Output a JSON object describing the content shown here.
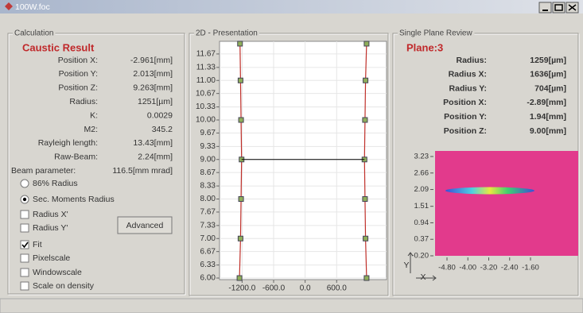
{
  "window": {
    "title": "100W.foc"
  },
  "calculation": {
    "group_title": "Calculation",
    "heading": "Caustic Result",
    "rows": [
      {
        "label": "Position X:",
        "value": "-2.961[mm]"
      },
      {
        "label": "Position Y:",
        "value": "2.013[mm]"
      },
      {
        "label": "Position Z:",
        "value": "9.263[mm]"
      },
      {
        "label": "Radius:",
        "value": "1251[µm]"
      },
      {
        "label": "K:",
        "value": "0.0029"
      },
      {
        "label": "M2:",
        "value": "345.2"
      },
      {
        "label": "Rayleigh length:",
        "value": "13.43[mm]"
      },
      {
        "label": "Raw-Beam:",
        "value": "2.24[mm]"
      },
      {
        "label": "Beam parameter:",
        "value": "116.5[mm mrad]"
      }
    ],
    "radios": [
      {
        "label": "86% Radius",
        "selected": false
      },
      {
        "label": "Sec. Moments Radius",
        "selected": true
      }
    ],
    "checkboxes": [
      {
        "label": "Radius X'",
        "checked": false
      },
      {
        "label": "Radius Y'",
        "checked": false
      },
      {
        "label": "Fit",
        "checked": true
      },
      {
        "label": "Pixelscale",
        "checked": false
      },
      {
        "label": "Windowscale",
        "checked": false
      },
      {
        "label": "Scale on density",
        "checked": false
      }
    ],
    "button": "Advanced"
  },
  "presentation": {
    "group_title": "2D - Presentation",
    "ylim": [
      5.96,
      11.99
    ],
    "xlim": [
      -1630,
      1550
    ],
    "yticks": [
      11.67,
      11.33,
      {
        "value": 11,
        "label": "11.00"
      },
      10.67,
      10.33,
      {
        "value": 10,
        "label": "10.00"
      },
      9.67,
      9.33,
      {
        "value": 9,
        "label": "9.00"
      },
      8.67,
      8.33,
      {
        "value": 8,
        "label": "8.00"
      },
      7.67,
      7.33,
      {
        "value": 7,
        "label": "7.00"
      },
      6.67,
      6.33,
      {
        "value": 6,
        "label": "6.00"
      }
    ],
    "xticks": [
      {
        "value": -1200,
        "label": "-1200.0"
      },
      {
        "value": -600,
        "label": "-600.0"
      },
      {
        "value": 0,
        "label": "0.0"
      },
      {
        "value": 600,
        "label": "600.0"
      }
    ],
    "caustic": {
      "z": [
        6,
        7,
        8,
        9,
        10,
        11,
        11.93
      ],
      "left": [
        -1250,
        -1230,
        -1220,
        -1210,
        -1220,
        -1230,
        -1240
      ],
      "right": [
        1170,
        1150,
        1140,
        1130,
        1140,
        1150,
        1170
      ]
    },
    "focus_z": 9
  },
  "plane_review": {
    "group_title": "Single Plane Review",
    "heading": "Plane:3",
    "rows": [
      {
        "label": "Radius:",
        "value": "1259[µm]"
      },
      {
        "label": "Radius X:",
        "value": "1636[µm]"
      },
      {
        "label": "Radius Y:",
        "value": "704[µm]"
      },
      {
        "label": "Position X:",
        "value": "-2.89[mm]"
      },
      {
        "label": "Position Y:",
        "value": "1.94[mm]"
      },
      {
        "label": "Position Z:",
        "value": "9.00[mm]"
      }
    ],
    "image": {
      "yticks": [
        3.23,
        2.66,
        2.09,
        1.51,
        0.94,
        0.37,
        {
          "value": -0.2,
          "label": "-0.20"
        }
      ],
      "xticks": [
        {
          "value": -4.8,
          "label": "-4.80"
        },
        {
          "value": -4,
          "label": "-4.00"
        },
        {
          "value": -3.2,
          "label": "-3.20"
        },
        {
          "value": -2.4,
          "label": "-2.40"
        },
        {
          "value": -1.6,
          "label": "-1.60"
        }
      ],
      "y_label": "Y",
      "x_label": "X"
    }
  }
}
